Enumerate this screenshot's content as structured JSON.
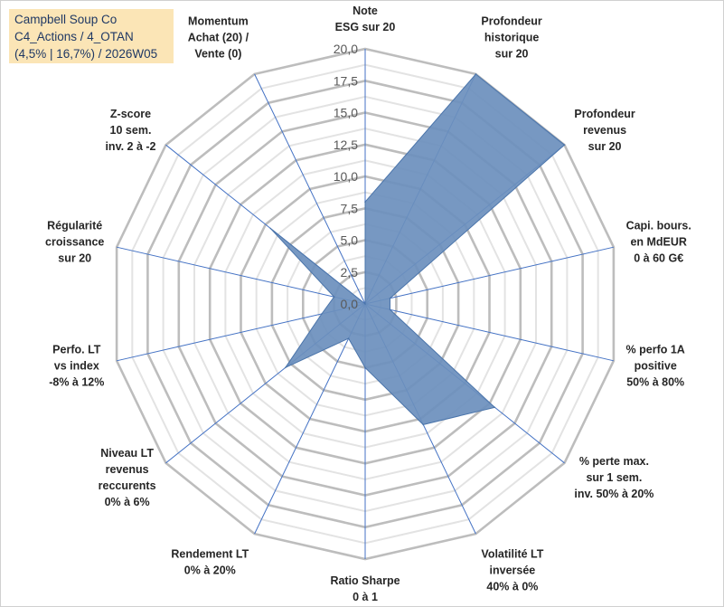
{
  "title_box": {
    "line1": "Campbell Soup Co",
    "line2": "C4_Actions / 4_OTAN",
    "line3": "(4,5% | 16,7%) / 2026W05",
    "background": "#fbe5b6"
  },
  "chart_data": {
    "type": "radar",
    "rlim": [
      0,
      20
    ],
    "grid": true,
    "ticks": [
      "0,0",
      "2,5",
      "5,0",
      "7,5",
      "10,0",
      "12,5",
      "15,0",
      "17,5",
      "20,0"
    ],
    "tick_values": [
      0,
      2.5,
      5,
      7.5,
      10,
      12.5,
      15,
      17.5,
      20
    ],
    "axes": [
      [
        "Note",
        "ESG sur 20"
      ],
      [
        "Profondeur",
        "historique",
        "sur 20"
      ],
      [
        "Profondeur",
        "revenus",
        "sur 20"
      ],
      [
        "Capi. bours.",
        "en MdEUR",
        "0 à 60 G€"
      ],
      [
        "% perfo 1A",
        "positive",
        "50% à 80%"
      ],
      [
        "% perte max.",
        "sur 1 sem.",
        "inv. 50% à 20%"
      ],
      [
        "Volatilité LT",
        "inversée",
        "40% à 0%"
      ],
      [
        "Ratio Sharpe",
        "0 à 1"
      ],
      [
        "Rendement LT",
        "0% à 20%"
      ],
      [
        "Niveau LT",
        "revenus",
        "reccurents",
        "0% à 6%"
      ],
      [
        "Perfo. LT",
        "vs index",
        "-8% à 12%"
      ],
      [
        "Régularité",
        "croissance",
        "sur 20"
      ],
      [
        "Z-score",
        "10 sem.",
        "inv. 2 à -2"
      ],
      [
        "Momentum",
        "Achat (20) /",
        "Vente (0)"
      ]
    ],
    "values": [
      8.0,
      20.0,
      20.0,
      2.0,
      2.0,
      13.0,
      10.5,
      5.0,
      3.0,
      8.0,
      3.5,
      2.5,
      9.5,
      0.0
    ],
    "fill_color": "#6b8fbd",
    "stroke_color": "#4a74aa",
    "grid_color": "#bfbfbf",
    "spoke_color": "#4472c4"
  }
}
